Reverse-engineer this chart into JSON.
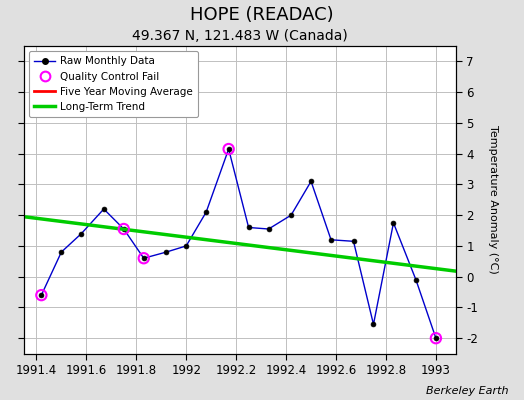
{
  "title": "HOPE (READAC)",
  "subtitle": "49.367 N, 121.483 W (Canada)",
  "credit": "Berkeley Earth",
  "ylabel": "Temperature Anomaly (°C)",
  "xlim": [
    1991.35,
    1993.08
  ],
  "ylim": [
    -2.5,
    7.5
  ],
  "yticks": [
    -2,
    -1,
    0,
    1,
    2,
    3,
    4,
    5,
    6,
    7
  ],
  "xticks": [
    1991.4,
    1991.6,
    1991.8,
    1992.0,
    1992.2,
    1992.4,
    1992.6,
    1992.8,
    1993.0
  ],
  "xtick_labels": [
    "1991.4",
    "1991.6",
    "1991.8",
    "1992",
    "1992.2",
    "1992.4",
    "1992.6",
    "1992.8",
    "1993"
  ],
  "raw_x": [
    1991.42,
    1991.5,
    1991.58,
    1991.67,
    1991.75,
    1991.83,
    1991.92,
    1992.0,
    1992.08,
    1992.17,
    1992.25,
    1992.33,
    1992.42,
    1992.5,
    1992.58,
    1992.67,
    1992.75,
    1992.83,
    1992.92,
    1993.0
  ],
  "raw_y": [
    -0.6,
    0.8,
    1.4,
    2.2,
    1.55,
    0.6,
    0.8,
    1.0,
    2.1,
    4.15,
    1.6,
    1.55,
    2.0,
    3.1,
    1.2,
    1.15,
    -1.55,
    1.75,
    -0.1,
    -2.0
  ],
  "qc_fail_x": [
    1991.42,
    1991.75,
    1991.83,
    1992.17,
    1993.0
  ],
  "qc_fail_y": [
    -0.6,
    1.55,
    0.6,
    4.15,
    -2.0
  ],
  "trend_x": [
    1991.35,
    1993.08
  ],
  "trend_y": [
    1.95,
    0.18
  ],
  "raw_line_color": "#0000cc",
  "raw_marker_color": "#000000",
  "qc_color": "#ff00ff",
  "trend_color": "#00cc00",
  "moving_avg_color": "#ff0000",
  "bg_color": "#e0e0e0",
  "plot_bg_color": "#ffffff",
  "grid_color": "#c0c0c0",
  "title_fontsize": 13,
  "subtitle_fontsize": 10,
  "label_fontsize": 8,
  "tick_fontsize": 8.5,
  "credit_fontsize": 8
}
